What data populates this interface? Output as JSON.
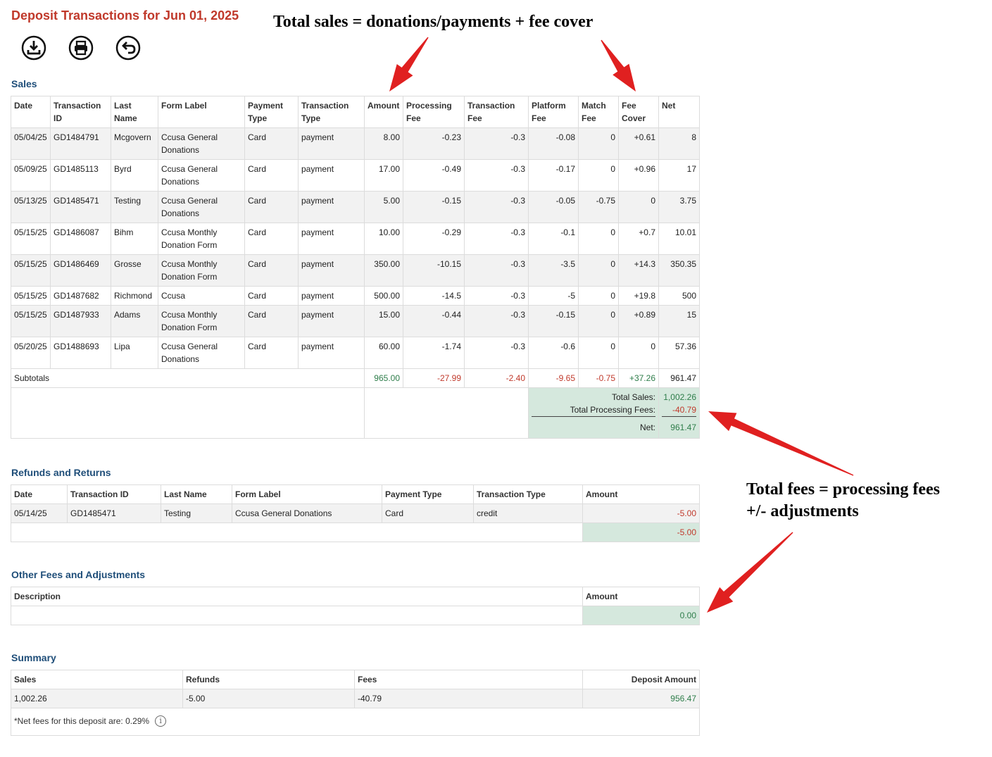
{
  "page_title": "Deposit Transactions for Jun 01, 2025",
  "toolbar": {
    "icons": [
      "download-icon",
      "print-icon",
      "back-icon"
    ]
  },
  "annotations": {
    "top": "Total sales = donations/payments + fee cover",
    "right_line1": "Total fees = processing fees",
    "right_line2": "+/- adjustments",
    "arrow_color": "#e02020"
  },
  "sales": {
    "title": "Sales",
    "headers": {
      "date": "Date",
      "transaction_id_1": "Transaction",
      "transaction_id_2": "ID",
      "last_name_1": "Last",
      "last_name_2": "Name",
      "form_label": "Form Label",
      "payment_type_1": "Payment",
      "payment_type_2": "Type",
      "transaction_type_1": "Transaction",
      "transaction_type_2": "Type",
      "amount": "Amount",
      "processing_fee_1": "Processing",
      "processing_fee_2": "Fee",
      "transaction_fee_1": "Transaction",
      "transaction_fee_2": "Fee",
      "platform_fee_1": "Platform",
      "platform_fee_2": "Fee",
      "match_fee_1": "Match",
      "match_fee_2": "Fee",
      "fee_cover_1": "Fee",
      "fee_cover_2": "Cover",
      "net": "Net"
    },
    "rows": [
      {
        "date": "05/04/25",
        "id": "GD1484791",
        "last": "Mcgovern",
        "form1": "Ccusa General",
        "form2": "Donations",
        "ptype": "Card",
        "ttype": "payment",
        "amount": "8.00",
        "proc": "-0.23",
        "tfee": "-0.3",
        "plat": "-0.08",
        "match": "0",
        "cover": "+0.61",
        "net": "8"
      },
      {
        "date": "05/09/25",
        "id": "GD1485113",
        "last": "Byrd",
        "form1": "Ccusa General",
        "form2": "Donations",
        "ptype": "Card",
        "ttype": "payment",
        "amount": "17.00",
        "proc": "-0.49",
        "tfee": "-0.3",
        "plat": "-0.17",
        "match": "0",
        "cover": "+0.96",
        "net": "17"
      },
      {
        "date": "05/13/25",
        "id": "GD1485471",
        "last": "Testing",
        "form1": "Ccusa General",
        "form2": "Donations",
        "ptype": "Card",
        "ttype": "payment",
        "amount": "5.00",
        "proc": "-0.15",
        "tfee": "-0.3",
        "plat": "-0.05",
        "match": "-0.75",
        "cover": "0",
        "net": "3.75"
      },
      {
        "date": "05/15/25",
        "id": "GD1486087",
        "last": "Bihm",
        "form1": "Ccusa Monthly",
        "form2": "Donation Form",
        "ptype": "Card",
        "ttype": "payment",
        "amount": "10.00",
        "proc": "-0.29",
        "tfee": "-0.3",
        "plat": "-0.1",
        "match": "0",
        "cover": "+0.7",
        "net": "10.01"
      },
      {
        "date": "05/15/25",
        "id": "GD1486469",
        "last": "Grosse",
        "form1": "Ccusa Monthly",
        "form2": "Donation Form",
        "ptype": "Card",
        "ttype": "payment",
        "amount": "350.00",
        "proc": "-10.15",
        "tfee": "-0.3",
        "plat": "-3.5",
        "match": "0",
        "cover": "+14.3",
        "net": "350.35"
      },
      {
        "date": "05/15/25",
        "id": "GD1487682",
        "last": "Richmond",
        "form1": "Ccusa",
        "form2": "",
        "ptype": "Card",
        "ttype": "payment",
        "amount": "500.00",
        "proc": "-14.5",
        "tfee": "-0.3",
        "plat": "-5",
        "match": "0",
        "cover": "+19.8",
        "net": "500"
      },
      {
        "date": "05/15/25",
        "id": "GD1487933",
        "last": "Adams",
        "form1": "Ccusa Monthly",
        "form2": "Donation Form",
        "ptype": "Card",
        "ttype": "payment",
        "amount": "15.00",
        "proc": "-0.44",
        "tfee": "-0.3",
        "plat": "-0.15",
        "match": "0",
        "cover": "+0.89",
        "net": "15"
      },
      {
        "date": "05/20/25",
        "id": "GD1488693",
        "last": "Lipa",
        "form1": "Ccusa General",
        "form2": "Donations",
        "ptype": "Card",
        "ttype": "payment",
        "amount": "60.00",
        "proc": "-1.74",
        "tfee": "-0.3",
        "plat": "-0.6",
        "match": "0",
        "cover": "0",
        "net": "57.36"
      }
    ],
    "subtotals": {
      "label": "Subtotals",
      "amount": "965.00",
      "proc": "-27.99",
      "tfee": "-2.40",
      "plat": "-9.65",
      "match": "-0.75",
      "cover": "+37.26",
      "net": "961.47"
    },
    "totals": {
      "sales_label": "Total Sales:",
      "sales_value": "1,002.26",
      "fees_label": "Total Processing Fees:",
      "fees_value": "-40.79",
      "net_label": "Net:",
      "net_value": "961.47"
    }
  },
  "refunds": {
    "title": "Refunds and Returns",
    "headers": {
      "date": "Date",
      "transaction_id": "Transaction ID",
      "last_name": "Last Name",
      "form_label": "Form Label",
      "payment_type": "Payment Type",
      "transaction_type": "Transaction Type",
      "amount": "Amount"
    },
    "rows": [
      {
        "date": "05/14/25",
        "id": "GD1485471",
        "last": "Testing",
        "form": "Ccusa General Donations",
        "ptype": "Card",
        "ttype": "credit",
        "amount": "-5.00"
      }
    ],
    "total": "-5.00"
  },
  "other_fees": {
    "title": "Other Fees and Adjustments",
    "headers": {
      "description": "Description",
      "amount": "Amount"
    },
    "total": "0.00"
  },
  "summary": {
    "title": "Summary",
    "headers": {
      "sales": "Sales",
      "refunds": "Refunds",
      "fees": "Fees",
      "deposit": "Deposit Amount"
    },
    "values": {
      "sales": "1,002.26",
      "refunds": "-5.00",
      "fees": "-40.79",
      "deposit": "956.47"
    },
    "note": "*Net fees for this deposit are: 0.29%",
    "info_glyph": "i"
  }
}
